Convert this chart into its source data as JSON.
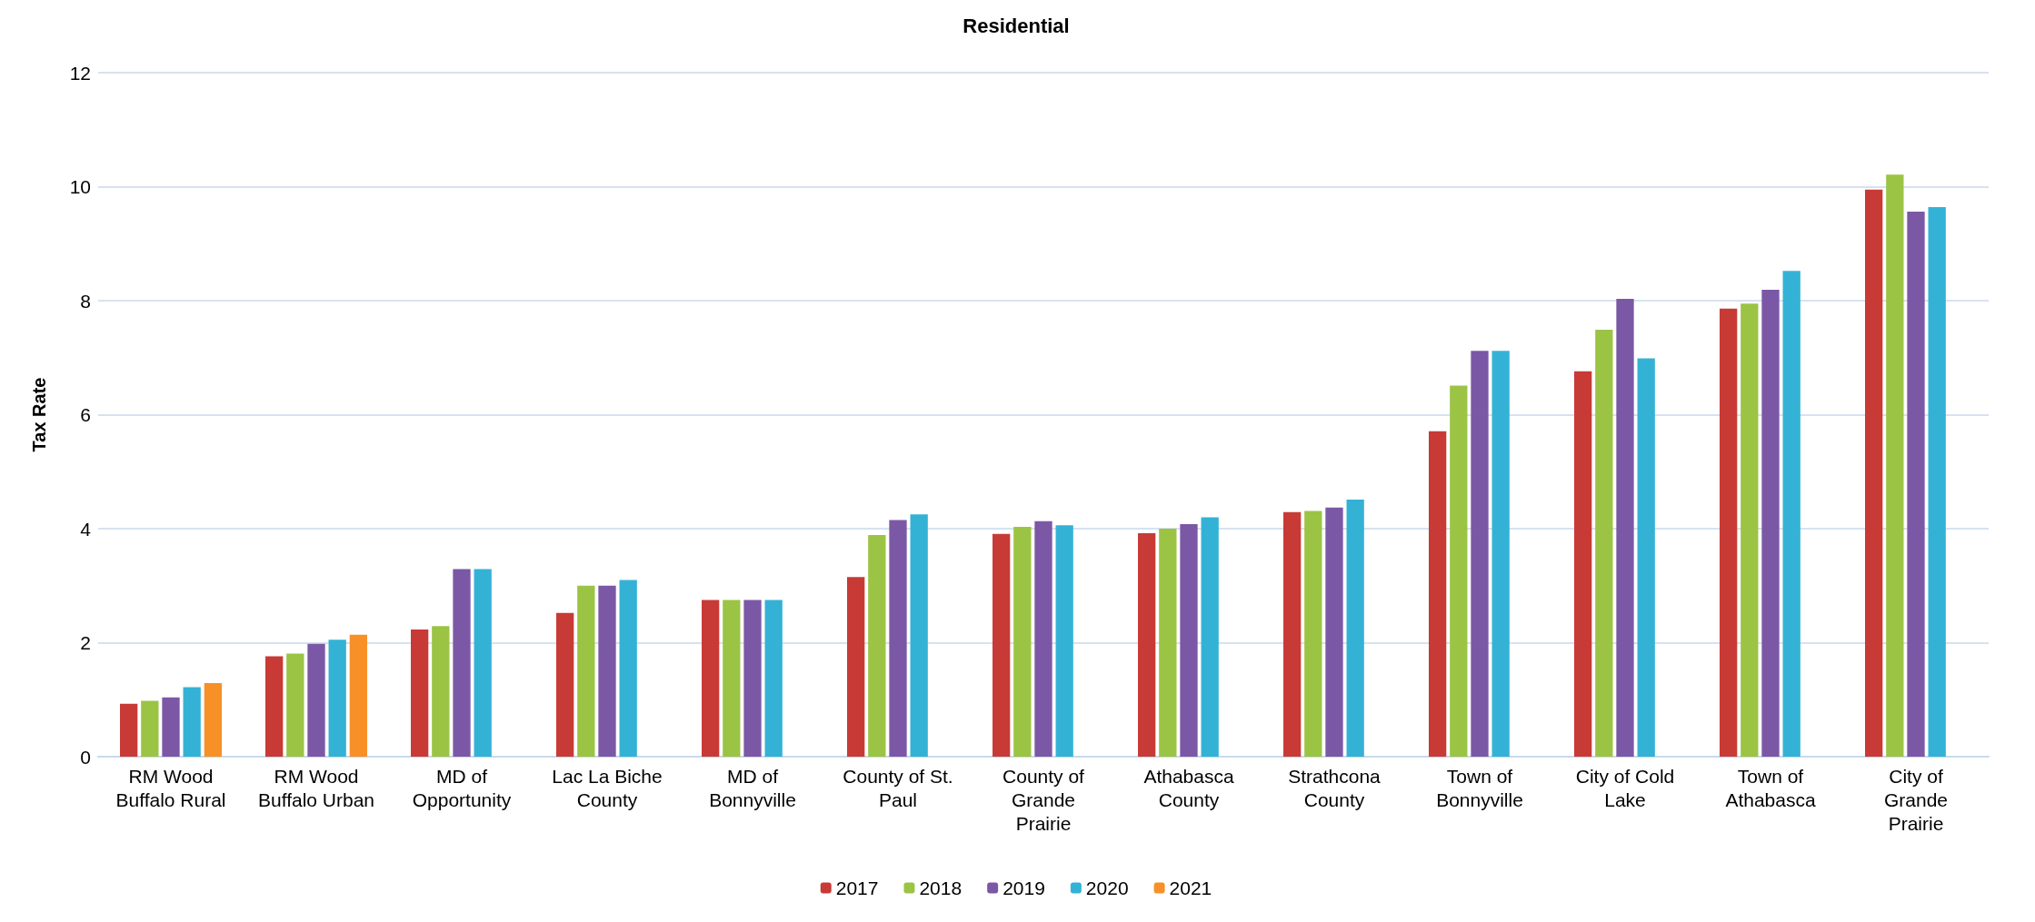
{
  "chart_data": {
    "type": "bar",
    "title": "Residential",
    "ylabel": "Tax Rate",
    "categories": [
      "RM Wood\nBuffalo Rural",
      "RM Wood\nBuffalo Urban",
      "MD of\nOpportunity",
      "Lac La Biche\nCounty",
      "MD of\nBonnyville",
      "County of St.\nPaul",
      "County of\nGrande\nPrairie",
      "Athabasca\nCounty",
      "Strathcona\nCounty",
      "Town of\nBonnyville",
      "City of Cold\nLake",
      "Town of\nAthabasca",
      "City of\nGrande\nPrairie"
    ],
    "series": [
      {
        "name": "2017",
        "color": "#c83a36",
        "values": [
          0.93,
          1.76,
          2.23,
          2.52,
          2.75,
          3.15,
          3.91,
          3.92,
          4.29,
          5.71,
          6.76,
          7.86,
          9.95
        ]
      },
      {
        "name": "2018",
        "color": "#9bc445",
        "values": [
          0.98,
          1.81,
          2.29,
          3.0,
          2.75,
          3.89,
          4.03,
          4.0,
          4.31,
          6.51,
          7.49,
          7.95,
          10.21
        ]
      },
      {
        "name": "2019",
        "color": "#7b58a6",
        "values": [
          1.04,
          1.98,
          3.29,
          3.0,
          2.75,
          4.15,
          4.13,
          4.08,
          4.37,
          7.12,
          8.03,
          8.19,
          9.56
        ]
      },
      {
        "name": "2020",
        "color": "#34b2d6",
        "values": [
          1.22,
          2.05,
          3.29,
          3.1,
          2.75,
          4.25,
          4.06,
          4.2,
          4.51,
          7.12,
          6.99,
          8.52,
          9.64
        ]
      },
      {
        "name": "2021",
        "color": "#f89028",
        "values": [
          1.29,
          2.14,
          null,
          null,
          null,
          null,
          null,
          null,
          null,
          null,
          null,
          null,
          null
        ]
      }
    ],
    "ylim": [
      0,
      12
    ],
    "yticks": [
      0,
      2,
      4,
      6,
      8,
      10,
      12
    ],
    "grid": "y",
    "legend": "bottom"
  }
}
